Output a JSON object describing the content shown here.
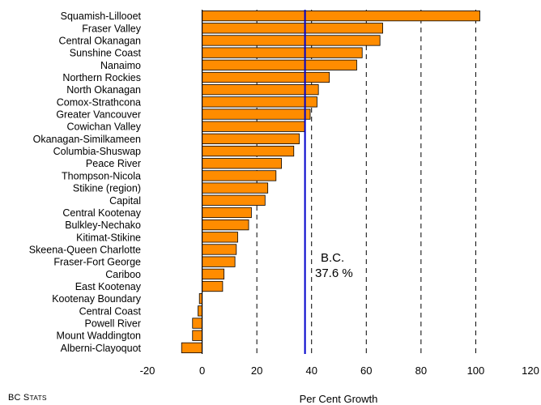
{
  "chart_data": {
    "type": "bar",
    "orientation": "horizontal",
    "categories": [
      "Squamish-Lillooet",
      "Fraser Valley",
      "Central Okanagan",
      "Sunshine Coast",
      "Nanaimo",
      "Northern Rockies",
      "North Okanagan",
      "Comox-Strathcona",
      "Greater Vancouver",
      "Cowichan Valley",
      "Okanagan-Similkameen",
      "Columbia-Shuswap",
      "Peace River",
      "Thompson-Nicola",
      "Stikine (region)",
      "Capital",
      "Central Kootenay",
      "Bulkley-Nechako",
      "Kitimat-Stikine",
      "Skeena-Queen Charlotte",
      "Fraser-Fort George",
      "Cariboo",
      "East Kootenay",
      "Kootenay Boundary",
      "Central Coast",
      "Powell River",
      "Mount Waddington",
      "Alberni-Clayoquot"
    ],
    "values": [
      101.5,
      66,
      65,
      58.5,
      56.5,
      46.5,
      42.5,
      42,
      39.5,
      37.5,
      35.5,
      33.5,
      29,
      27,
      24,
      23,
      18,
      17,
      13,
      12.5,
      12,
      8,
      7.5,
      -1,
      -1.5,
      -3.5,
      -3.5,
      -7.5
    ],
    "xlabel": "Per Cent Growth",
    "xlim": [
      -20,
      120
    ],
    "xticks": [
      "-20",
      "0",
      "20",
      "40",
      "60",
      "80",
      "100",
      "120"
    ],
    "xtick_values": [
      -20,
      0,
      20,
      40,
      60,
      80,
      100,
      120
    ],
    "gridlines": [
      20,
      40,
      60,
      80,
      100
    ],
    "grid_style": "dashed vertical",
    "reference": {
      "value": 37.6,
      "name": "B.C.",
      "label": "37.6 %"
    },
    "colors": {
      "bar": "#ff8c00",
      "bar_edge": "#000000",
      "reference_line": "#0000cc"
    }
  },
  "source": {
    "prefix": "BC S",
    "suffix": "TATS"
  }
}
